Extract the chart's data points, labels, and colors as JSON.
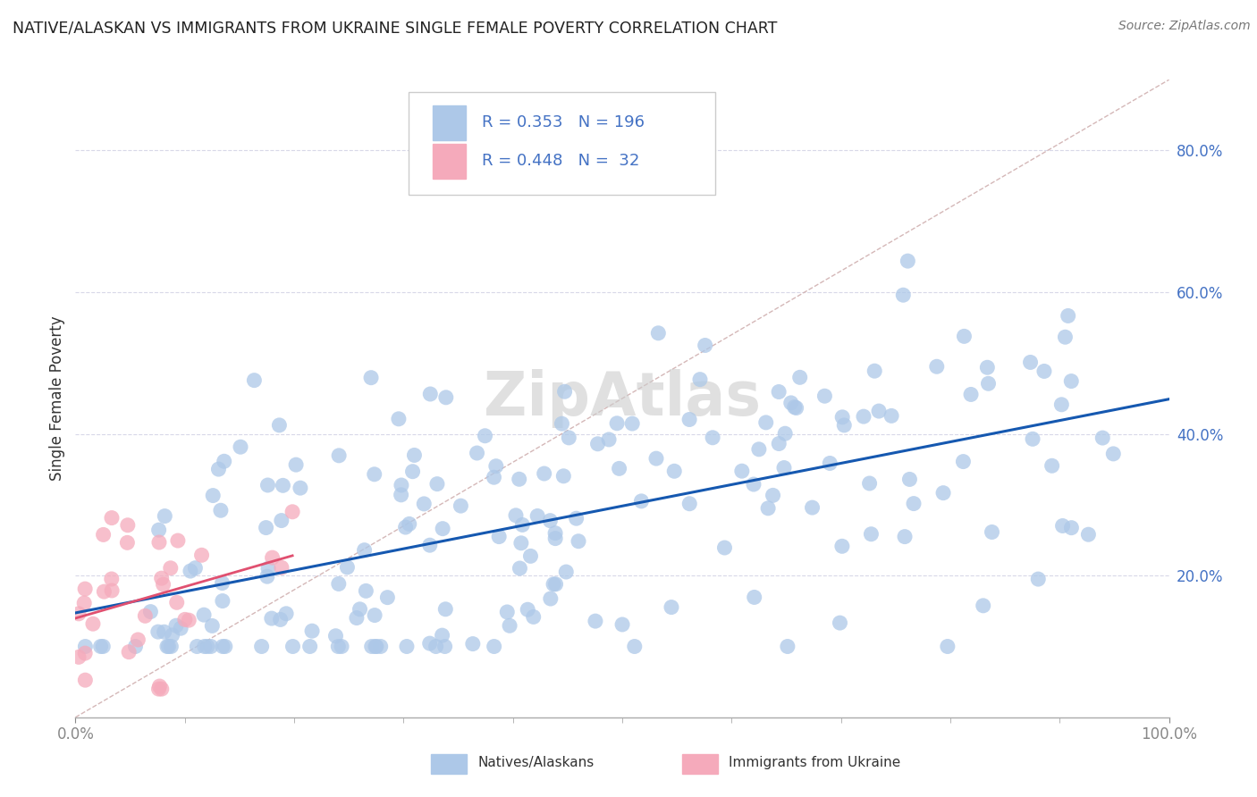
{
  "title": "NATIVE/ALASKAN VS IMMIGRANTS FROM UKRAINE SINGLE FEMALE POVERTY CORRELATION CHART",
  "source": "Source: ZipAtlas.com",
  "ylabel": "Single Female Poverty",
  "ytick_labels": [
    "20.0%",
    "40.0%",
    "60.0%",
    "80.0%"
  ],
  "ytick_values": [
    0.2,
    0.4,
    0.6,
    0.8
  ],
  "legend_label1": "Natives/Alaskans",
  "legend_label2": "Immigrants from Ukraine",
  "R1": 0.353,
  "N1": 196,
  "R2": 0.448,
  "N2": 32,
  "color_blue": "#adc8e8",
  "color_pink": "#f5aabb",
  "trendline_blue": "#1558b0",
  "trendline_pink": "#e05070",
  "trendline_diagonal_color": "#d0b0b0",
  "background": "#ffffff",
  "tick_color": "#4472c4",
  "grid_color": "#d8d8e8"
}
